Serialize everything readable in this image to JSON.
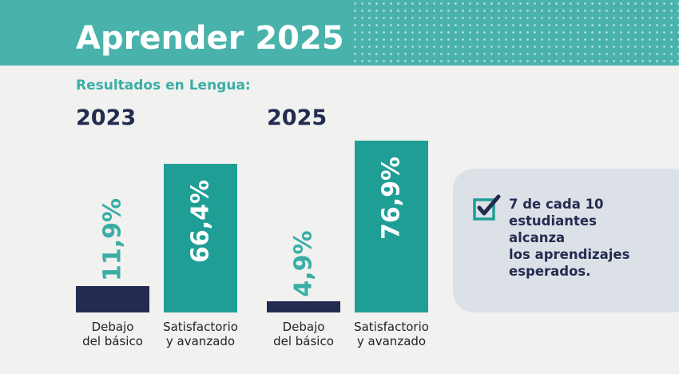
{
  "title": "Aprender 2025",
  "subtitle": "Resultados en Lengua:",
  "callout": [
    "7 de cada 10",
    "estudiantes",
    "alcanza",
    "los aprendizajes",
    "esperados."
  ],
  "chart_data": [
    {
      "type": "bar",
      "title": "2023",
      "categories": [
        "Debajo del básico",
        "Satisfactorio y avanzado"
      ],
      "values": [
        11.9,
        66.4
      ],
      "value_labels": [
        "11,9%",
        "66,4%"
      ],
      "colors": [
        "#232c50",
        "#1f9e96"
      ]
    },
    {
      "type": "bar",
      "title": "2025",
      "categories": [
        "Debajo del básico",
        "Satisfactorio y avanzado"
      ],
      "values": [
        4.9,
        76.9
      ],
      "value_labels": [
        "4,9%",
        "76,9%"
      ],
      "colors": [
        "#232c50",
        "#1f9e96"
      ]
    }
  ]
}
